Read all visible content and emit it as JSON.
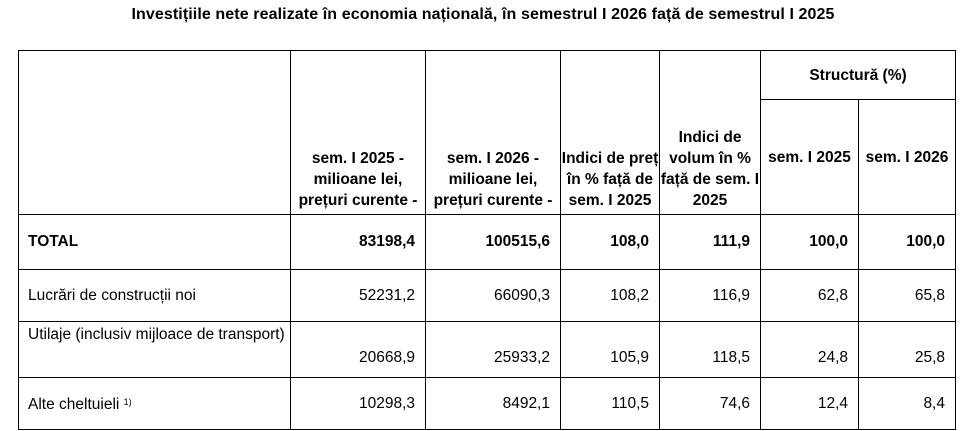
{
  "title": "Investițiile nete realizate în economia națională, în semestrul I 2026 față de semestrul I 2025",
  "headers": {
    "col1": "sem. I 2025 - milioane lei, prețuri curente -",
    "col2": "sem. I 2026 - milioane lei, prețuri curente -",
    "col3": "Indici de preț în % față de sem. I 2025",
    "col4": "Indici de volum în % față de sem. I 2025",
    "structura": "Structură (%)",
    "sub1": "sem. I 2025",
    "sub2": "sem. I 2026"
  },
  "rows": [
    {
      "label": "TOTAL",
      "v1": "83198,4",
      "v2": "100515,6",
      "v3": "108,0",
      "v4": "111,9",
      "s1": "100,0",
      "s2": "100,0"
    },
    {
      "label": "Lucrări de construcții noi",
      "v1": "52231,2",
      "v2": "66090,3",
      "v3": "108,2",
      "v4": "116,9",
      "s1": "62,8",
      "s2": "65,8"
    },
    {
      "label": "Utilaje (inclusiv mijloace de transport)",
      "v1": "20668,9",
      "v2": "25933,2",
      "v3": "105,9",
      "v4": "118,5",
      "s1": "24,8",
      "s2": "25,8"
    },
    {
      "label": "Alte cheltuieli",
      "footnote": "1)",
      "v1": "10298,3",
      "v2": "8492,1",
      "v3": "110,5",
      "v4": "74,6",
      "s1": "12,4",
      "s2": "8,4"
    }
  ]
}
